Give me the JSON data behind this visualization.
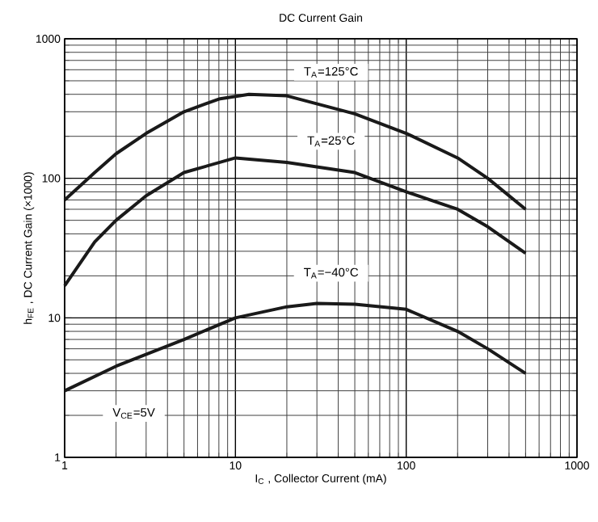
{
  "chart_data": {
    "type": "line",
    "title": "DC Current Gain",
    "xlabel": "I$_{C}$ , Collector Current (mA)",
    "ylabel": "h$_{FE}$ , DC Current Gain (×1000)",
    "log": "xy",
    "grid": true,
    "marker": "none",
    "line_style": "solid",
    "xlim": [
      1,
      1000
    ],
    "ylim": [
      1,
      1000
    ],
    "xticks": [
      1,
      10,
      100,
      1000
    ],
    "yticks": [
      1,
      10,
      100,
      1000
    ],
    "series": [
      {
        "color": "#1a1a1a",
        "x": [
          1,
          1.5,
          2,
          3,
          5,
          8,
          12,
          20,
          50,
          100,
          200,
          300,
          500
        ],
        "values": [
          70,
          110,
          150,
          210,
          300,
          370,
          400,
          390,
          290,
          210,
          140,
          100,
          60
        ]
      },
      {
        "color": "#1a1a1a",
        "x": [
          1,
          1.5,
          2,
          3,
          5,
          10,
          20,
          50,
          100,
          200,
          300,
          500
        ],
        "values": [
          17,
          35,
          50,
          75,
          110,
          140,
          130,
          110,
          80,
          60,
          45,
          29
        ]
      },
      {
        "color": "#1a1a1a",
        "x": [
          1,
          2,
          5,
          10,
          20,
          30,
          50,
          100,
          200,
          300,
          500
        ],
        "values": [
          3,
          4.5,
          7,
          10,
          12,
          12.7,
          12.5,
          11.5,
          8,
          6,
          4
        ]
      }
    ],
    "annotations": [
      "T$_{A}$=125°C",
      "T$_{A}$=25°C",
      "T$_{A}$=−40°C",
      "V$_{CE}$=5V"
    ]
  }
}
